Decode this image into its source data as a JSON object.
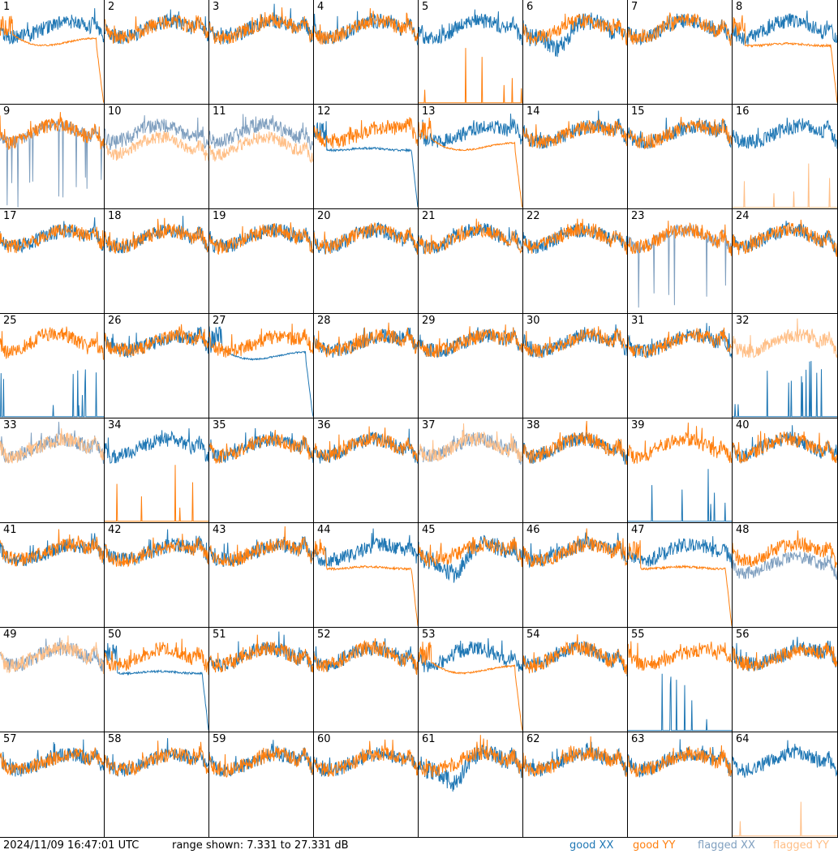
{
  "chart_data": {
    "type": "line",
    "layout_desc": "8x8 grid of per-antenna bandpass spectra",
    "y_range_db": [
      7.331,
      27.331
    ],
    "colors": {
      "good_xx": "#1f77b4",
      "good_yy": "#ff7f0e",
      "flagged_xx": "#7f9fbf",
      "flagged_yy": "#ffbf87"
    },
    "tiles": [
      {
        "n": "1"
      },
      {
        "n": "2"
      },
      {
        "n": "3"
      },
      {
        "n": "4"
      },
      {
        "n": "5"
      },
      {
        "n": "6"
      },
      {
        "n": "7"
      },
      {
        "n": "8"
      },
      {
        "n": "9"
      },
      {
        "n": "10"
      },
      {
        "n": "11"
      },
      {
        "n": "12"
      },
      {
        "n": "13"
      },
      {
        "n": "14"
      },
      {
        "n": "15"
      },
      {
        "n": "16"
      },
      {
        "n": "17"
      },
      {
        "n": "18"
      },
      {
        "n": "19"
      },
      {
        "n": "20"
      },
      {
        "n": "21"
      },
      {
        "n": "22"
      },
      {
        "n": "23"
      },
      {
        "n": "24"
      },
      {
        "n": "25"
      },
      {
        "n": "26"
      },
      {
        "n": "27"
      },
      {
        "n": "28"
      },
      {
        "n": "29"
      },
      {
        "n": "30"
      },
      {
        "n": "31"
      },
      {
        "n": "32"
      },
      {
        "n": "33"
      },
      {
        "n": "34"
      },
      {
        "n": "35"
      },
      {
        "n": "36"
      },
      {
        "n": "37"
      },
      {
        "n": "38"
      },
      {
        "n": "39"
      },
      {
        "n": "40"
      },
      {
        "n": "41"
      },
      {
        "n": "42"
      },
      {
        "n": "43"
      },
      {
        "n": "44"
      },
      {
        "n": "45"
      },
      {
        "n": "46"
      },
      {
        "n": "47"
      },
      {
        "n": "48"
      },
      {
        "n": "49"
      },
      {
        "n": "50"
      },
      {
        "n": "51"
      },
      {
        "n": "52"
      },
      {
        "n": "53"
      },
      {
        "n": "54"
      },
      {
        "n": "55"
      },
      {
        "n": "56"
      },
      {
        "n": "57"
      },
      {
        "n": "58"
      },
      {
        "n": "59"
      },
      {
        "n": "60"
      },
      {
        "n": "61"
      },
      {
        "n": "62"
      },
      {
        "n": "63"
      },
      {
        "n": "64"
      }
    ],
    "tile_styles": {
      "1": {
        "xx": "good",
        "yy": "decay"
      },
      "5": {
        "xx": "good",
        "yy": "spiky_low"
      },
      "6": {
        "xx": "wobbly",
        "yy": "good"
      },
      "8": {
        "xx": "good",
        "yy": "flat_drop"
      },
      "9": {
        "xx": "flagged_spiky",
        "yy": "good"
      },
      "10": {
        "xx": "flagged",
        "yy": "flagged_low"
      },
      "11": {
        "xx": "flagged",
        "yy": "flagged_low"
      },
      "12": {
        "xx": "flat_drop",
        "yy": "good"
      },
      "13": {
        "xx": "good",
        "yy": "decay"
      },
      "16": {
        "xx": "good",
        "yy": "flagged_spiky_low"
      },
      "23": {
        "xx": "flagged_spiky",
        "yy": "good"
      },
      "25": {
        "xx": "spiky_low",
        "yy": "good"
      },
      "27": {
        "xx": "decay",
        "yy": "good"
      },
      "32": {
        "xx": "spiky_low",
        "yy": "flagged"
      },
      "33": {
        "xx": "flagged",
        "yy": "flagged"
      },
      "34": {
        "xx": "good",
        "yy": "spiky_low"
      },
      "37": {
        "xx": "flagged",
        "yy": "flagged"
      },
      "39": {
        "xx": "spiky_low",
        "yy": "good"
      },
      "44": {
        "xx": "good",
        "yy": "flat_drop"
      },
      "45": {
        "xx": "wobbly",
        "yy": "good"
      },
      "47": {
        "xx": "good",
        "yy": "flat_drop"
      },
      "48": {
        "xx": "flagged_low",
        "yy": "good"
      },
      "49": {
        "xx": "flagged",
        "yy": "flagged"
      },
      "50": {
        "xx": "flat_drop",
        "yy": "good"
      },
      "53": {
        "xx": "good",
        "yy": "decay"
      },
      "55": {
        "xx": "spiky_low",
        "yy": "good"
      },
      "61": {
        "xx": "wobbly",
        "yy": "good"
      },
      "64": {
        "xx": "good",
        "yy": "flagged_spiky_low"
      }
    }
  },
  "footer": {
    "timestamp": "2024/11/09 16:47:01 UTC",
    "range": "range shown: 7.331 to 27.331 dB",
    "legend": {
      "good_xx": "good XX",
      "good_yy": "good YY",
      "flagged_xx": "flagged XX",
      "flagged_yy": "flagged YY"
    }
  }
}
